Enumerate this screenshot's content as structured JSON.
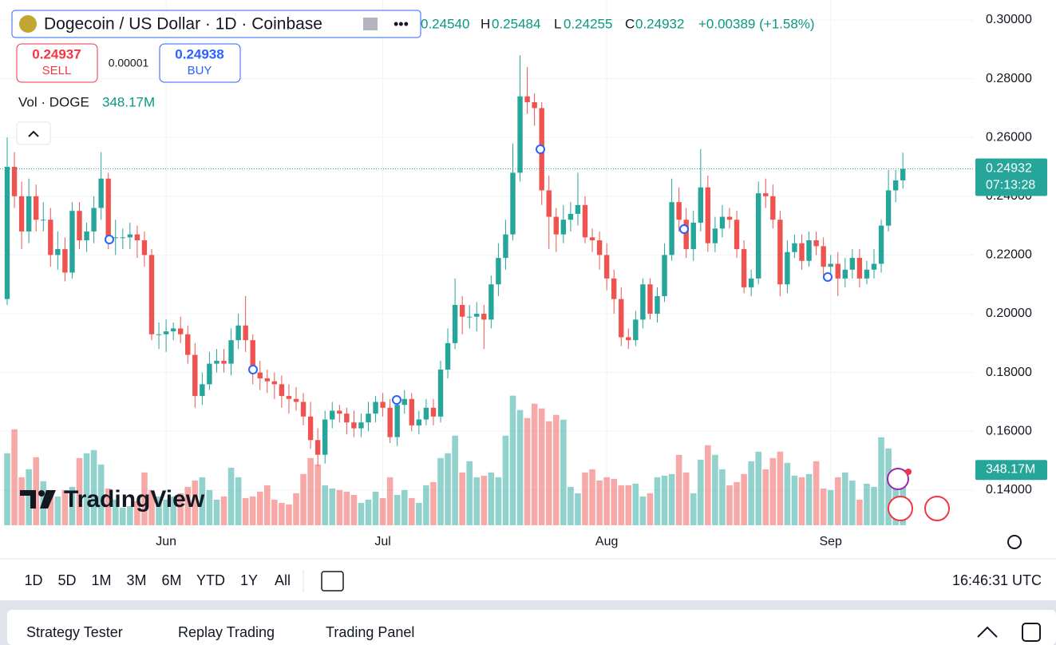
{
  "header": {
    "symbol_title": "Dogecoin / US Dollar · 1D · Coinbase",
    "ohlc": [
      {
        "value": "0.24540"
      },
      {
        "key": "H",
        "value": "0.25484"
      },
      {
        "key": "L",
        "value": "0.24255"
      },
      {
        "key": "C",
        "value": "0.24932"
      }
    ],
    "change": "+0.00389 (+1.58%)",
    "sell": {
      "price": "0.24937",
      "label": "SELL"
    },
    "spread": "0.00001",
    "buy": {
      "price": "0.24938",
      "label": "BUY"
    },
    "volume_legend": {
      "name": "Vol · DOGE",
      "value": "348.17M"
    }
  },
  "chart_data": {
    "type": "candlestick",
    "categories": [
      null,
      null,
      null,
      null,
      null,
      null,
      null,
      null,
      null,
      null,
      null,
      null,
      null,
      null,
      null,
      null,
      null,
      null,
      null,
      null,
      null,
      null,
      "Jun",
      null,
      null,
      null,
      null,
      null,
      null,
      null,
      null,
      null,
      null,
      null,
      null,
      null,
      null,
      null,
      null,
      null,
      null,
      null,
      null,
      null,
      null,
      null,
      null,
      null,
      null,
      null,
      null,
      null,
      "Jul",
      null,
      null,
      null,
      null,
      null,
      null,
      null,
      null,
      null,
      null,
      null,
      null,
      null,
      null,
      null,
      null,
      null,
      null,
      null,
      null,
      null,
      null,
      null,
      null,
      null,
      null,
      null,
      null,
      null,
      null,
      "Aug",
      null,
      null,
      null,
      null,
      null,
      null,
      null,
      null,
      null,
      null,
      null,
      null,
      null,
      null,
      null,
      null,
      null,
      null,
      null,
      null,
      null,
      null,
      null,
      null,
      null,
      null,
      null,
      null,
      null,
      null,
      "Sep",
      null,
      null,
      null,
      null,
      null,
      null,
      null,
      null,
      null,
      null
    ],
    "open": [
      0.205,
      0.25,
      0.24,
      0.228,
      0.24,
      0.232,
      0.232,
      0.22,
      0.222,
      0.214,
      0.235,
      0.225,
      0.228,
      0.236,
      0.246,
      0.226,
      0.226,
      0.226,
      0.227,
      0.225,
      0.22,
      0.193,
      0.193,
      0.194,
      0.195,
      0.193,
      0.186,
      0.172,
      0.176,
      0.183,
      0.184,
      0.183,
      0.191,
      0.196,
      0.191,
      0.18,
      0.178,
      0.177,
      0.176,
      0.172,
      0.171,
      0.17,
      0.165,
      0.157,
      0.152,
      0.164,
      0.167,
      0.166,
      0.163,
      0.161,
      0.163,
      0.166,
      0.17,
      0.168,
      0.158,
      0.169,
      0.171,
      0.162,
      0.164,
      0.168,
      0.165,
      0.181,
      0.19,
      0.203,
      0.199,
      0.199,
      0.2,
      0.198,
      0.21,
      0.219,
      0.227,
      0.248,
      0.274,
      0.272,
      0.27,
      0.242,
      0.233,
      0.227,
      0.232,
      0.234,
      0.237,
      0.226,
      0.225,
      0.22,
      0.212,
      0.205,
      0.192,
      0.191,
      0.198,
      0.21,
      0.2,
      0.206,
      0.22,
      0.238,
      0.232,
      0.222,
      0.231,
      0.243,
      0.224,
      0.229,
      0.233,
      0.232,
      0.222,
      0.209,
      0.212,
      0.241,
      0.24,
      0.232,
      0.21,
      0.221,
      0.224,
      0.218,
      0.225,
      0.223,
      0.216,
      0.217,
      0.212,
      0.215,
      0.219,
      0.212,
      0.215,
      0.217,
      0.23,
      0.242,
      0.2454
    ],
    "high": [
      0.26,
      0.255,
      0.245,
      0.246,
      0.244,
      0.238,
      0.236,
      0.228,
      0.226,
      0.238,
      0.238,
      0.231,
      0.24,
      0.255,
      0.248,
      0.232,
      0.229,
      0.231,
      0.23,
      0.228,
      0.222,
      0.197,
      0.198,
      0.197,
      0.199,
      0.196,
      0.19,
      0.18,
      0.187,
      0.188,
      0.188,
      0.195,
      0.2,
      0.206,
      0.193,
      0.184,
      0.181,
      0.18,
      0.179,
      0.176,
      0.175,
      0.173,
      0.17,
      0.161,
      0.167,
      0.17,
      0.169,
      0.168,
      0.167,
      0.166,
      0.17,
      0.172,
      0.173,
      0.171,
      0.172,
      0.174,
      0.173,
      0.167,
      0.171,
      0.171,
      0.184,
      0.195,
      0.212,
      0.206,
      0.203,
      0.204,
      0.203,
      0.213,
      0.224,
      0.232,
      0.258,
      0.288,
      0.284,
      0.275,
      0.272,
      0.247,
      0.236,
      0.237,
      0.238,
      0.248,
      0.24,
      0.229,
      0.228,
      0.224,
      0.215,
      0.209,
      0.195,
      0.201,
      0.212,
      0.212,
      0.209,
      0.224,
      0.246,
      0.243,
      0.236,
      0.235,
      0.256,
      0.247,
      0.233,
      0.237,
      0.236,
      0.235,
      0.225,
      0.215,
      0.245,
      0.246,
      0.244,
      0.235,
      0.225,
      0.227,
      0.227,
      0.228,
      0.228,
      0.226,
      0.22,
      0.221,
      0.219,
      0.222,
      0.222,
      0.218,
      0.222,
      0.232,
      0.249,
      0.249,
      0.25484
    ],
    "low": [
      0.203,
      0.236,
      0.222,
      0.224,
      0.228,
      0.228,
      0.216,
      0.215,
      0.211,
      0.212,
      0.222,
      0.221,
      0.224,
      0.232,
      0.222,
      0.22,
      0.222,
      0.222,
      0.219,
      0.216,
      0.191,
      0.188,
      0.187,
      0.191,
      0.19,
      0.183,
      0.168,
      0.169,
      0.174,
      0.18,
      0.18,
      0.179,
      0.188,
      0.187,
      0.176,
      0.174,
      0.173,
      0.171,
      0.168,
      0.166,
      0.167,
      0.162,
      0.154,
      0.148,
      0.149,
      0.161,
      0.163,
      0.159,
      0.158,
      0.158,
      0.16,
      0.163,
      0.165,
      0.156,
      0.155,
      0.166,
      0.16,
      0.159,
      0.162,
      0.162,
      0.163,
      0.178,
      0.188,
      0.193,
      0.195,
      0.194,
      0.188,
      0.195,
      0.206,
      0.215,
      0.225,
      0.245,
      0.268,
      0.264,
      0.237,
      0.222,
      0.221,
      0.224,
      0.228,
      0.23,
      0.224,
      0.221,
      0.215,
      0.208,
      0.2,
      0.189,
      0.188,
      0.189,
      0.195,
      0.198,
      0.197,
      0.204,
      0.218,
      0.228,
      0.219,
      0.218,
      0.228,
      0.221,
      0.221,
      0.226,
      0.229,
      0.219,
      0.207,
      0.206,
      0.21,
      0.236,
      0.229,
      0.206,
      0.207,
      0.219,
      0.215,
      0.216,
      0.22,
      0.212,
      0.213,
      0.206,
      0.209,
      0.212,
      0.209,
      0.21,
      0.212,
      0.214,
      0.228,
      0.238,
      0.24255
    ],
    "close": [
      0.25,
      0.24,
      0.228,
      0.24,
      0.232,
      0.232,
      0.22,
      0.222,
      0.214,
      0.235,
      0.225,
      0.228,
      0.236,
      0.246,
      0.226,
      0.226,
      0.226,
      0.227,
      0.225,
      0.22,
      0.193,
      0.193,
      0.194,
      0.195,
      0.193,
      0.186,
      0.172,
      0.176,
      0.183,
      0.184,
      0.183,
      0.191,
      0.196,
      0.191,
      0.18,
      0.178,
      0.177,
      0.176,
      0.172,
      0.171,
      0.17,
      0.165,
      0.157,
      0.152,
      0.164,
      0.167,
      0.166,
      0.163,
      0.161,
      0.163,
      0.166,
      0.17,
      0.168,
      0.158,
      0.169,
      0.171,
      0.162,
      0.164,
      0.168,
      0.165,
      0.181,
      0.19,
      0.203,
      0.199,
      0.199,
      0.2,
      0.198,
      0.21,
      0.219,
      0.227,
      0.248,
      0.274,
      0.272,
      0.27,
      0.242,
      0.233,
      0.227,
      0.232,
      0.234,
      0.237,
      0.226,
      0.225,
      0.22,
      0.212,
      0.205,
      0.192,
      0.191,
      0.198,
      0.21,
      0.2,
      0.206,
      0.22,
      0.238,
      0.232,
      0.222,
      0.231,
      0.243,
      0.224,
      0.229,
      0.233,
      0.232,
      0.222,
      0.209,
      0.212,
      0.241,
      0.24,
      0.232,
      0.21,
      0.221,
      0.224,
      0.218,
      0.225,
      0.223,
      0.216,
      0.217,
      0.212,
      0.215,
      0.219,
      0.212,
      0.215,
      0.217,
      0.23,
      0.242,
      0.2454,
      0.24932
    ],
    "volume": [
      450,
      600,
      300,
      350,
      425,
      275,
      200,
      180,
      220,
      240,
      420,
      450,
      470,
      380,
      230,
      160,
      110,
      120,
      150,
      330,
      220,
      180,
      160,
      180,
      200,
      240,
      280,
      300,
      220,
      160,
      180,
      360,
      300,
      170,
      180,
      210,
      250,
      160,
      140,
      130,
      200,
      320,
      420,
      380,
      250,
      230,
      220,
      210,
      190,
      140,
      160,
      210,
      170,
      300,
      190,
      220,
      170,
      140,
      250,
      270,
      420,
      450,
      560,
      330,
      400,
      300,
      310,
      330,
      300,
      560,
      810,
      720,
      670,
      760,
      730,
      650,
      690,
      660,
      240,
      200,
      330,
      350,
      280,
      300,
      290,
      250,
      250,
      260,
      180,
      200,
      300,
      310,
      320,
      440,
      330,
      200,
      410,
      500,
      440,
      350,
      250,
      270,
      320,
      400,
      460,
      350,
      420,
      460,
      390,
      310,
      300,
      320,
      400,
      230,
      220,
      300,
      330,
      280,
      160,
      260,
      240,
      550,
      480,
      340,
      348.17
    ],
    "volume_last_label": "348.17M",
    "volume_lim": [
      0,
      3250
    ],
    "up_color": "#26a69a",
    "down_color": "#ef5350",
    "ylim": [
      0.128,
      0.305
    ],
    "yticks": [
      {
        "value": 0.14,
        "label": "0.14000"
      },
      {
        "value": 0.16,
        "label": "0.16000"
      },
      {
        "value": 0.18,
        "label": "0.18000"
      },
      {
        "value": 0.2,
        "label": "0.20000"
      },
      {
        "value": 0.22,
        "label": "0.22000"
      },
      {
        "value": 0.24,
        "label": "0.24000"
      },
      {
        "value": 0.26,
        "label": "0.26000"
      },
      {
        "value": 0.28,
        "label": "0.28000"
      },
      {
        "value": 0.3,
        "label": "0.30000"
      }
    ],
    "grid": true,
    "last_price_label": "0.24932",
    "countdown": "07:13:28"
  },
  "toolbar": {
    "timeframes": [
      "1D",
      "5D",
      "1M",
      "3M",
      "6M",
      "YTD",
      "1Y",
      "All"
    ],
    "clock": "16:46:31 UTC"
  },
  "bottom_panel": {
    "tabs": [
      "Strategy Tester",
      "Replay Trading",
      "Trading Panel"
    ]
  },
  "logo": "TradingView"
}
